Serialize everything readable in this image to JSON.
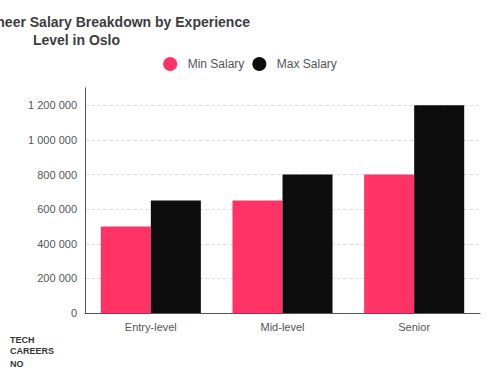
{
  "chart_data": {
    "type": "bar",
    "title": "Software Engineer Salary Breakdown by Experience\nLevel in Oslo",
    "categories": [
      "Entry-level",
      "Mid-level",
      "Senior"
    ],
    "series": [
      {
        "name": "Min Salary",
        "color": "#FF3366",
        "values": [
          500000,
          650000,
          800000
        ]
      },
      {
        "name": "Max Salary",
        "color": "#0d0d0d",
        "values": [
          650000,
          800000,
          1200000
        ]
      }
    ],
    "ylim": [
      0,
      1300000
    ],
    "yticks": [
      0,
      {
        "value": 200000,
        "label": "200 000"
      },
      {
        "value": 400000,
        "label": "400 000"
      },
      {
        "value": 600000,
        "label": "600 000"
      },
      {
        "value": 800000,
        "label": "800 000"
      },
      {
        "value": 1000000,
        "label": "1 000 000"
      },
      {
        "value": 1200000,
        "label": "1 200 000"
      }
    ],
    "grid": true,
    "legend": "top",
    "annotations": [
      "TECH\nCAREERS",
      "NO"
    ]
  }
}
